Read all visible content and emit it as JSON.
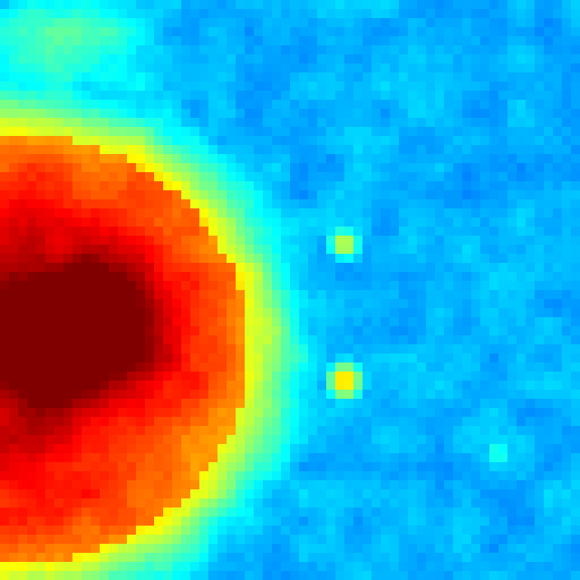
{
  "image": {
    "kind": "false-color intensity heatmap",
    "colormap": "jet",
    "colormap_stops": [
      "#000080",
      "#0000ff",
      "#00ffff",
      "#ffff00",
      "#ff0000",
      "#800000"
    ],
    "background_color": "#0000a0",
    "visible_text": []
  }
}
